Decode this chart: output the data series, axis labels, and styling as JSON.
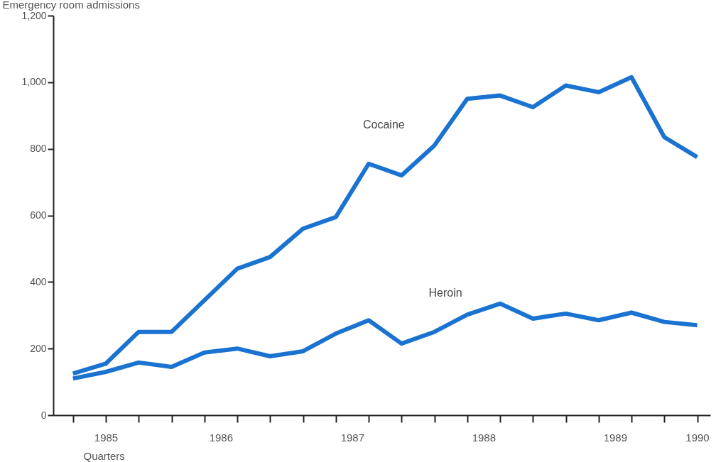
{
  "chart_data": {
    "type": "line",
    "ylabel": "Emergency room admissions",
    "xlabel": "Quarters",
    "x": [
      1985.25,
      1985.5,
      1985.75,
      1986,
      1986.25,
      1986.5,
      1986.75,
      1987,
      1987.25,
      1987.5,
      1987.75,
      1988,
      1988.25,
      1988.5,
      1988.75,
      1989,
      1989.25,
      1989.5,
      1989.75,
      1990
    ],
    "series": [
      {
        "name": "Cocaine",
        "color": "#1a73d0",
        "values": [
          125,
          155,
          250,
          250,
          345,
          440,
          475,
          560,
          595,
          755,
          720,
          810,
          950,
          960,
          925,
          990,
          970,
          1015,
          835,
          775
        ]
      },
      {
        "name": "Heroin",
        "color": "#1a73d0",
        "values": [
          110,
          130,
          158,
          145,
          188,
          200,
          177,
          192,
          245,
          285,
          215,
          250,
          302,
          335,
          290,
          305,
          285,
          308,
          280,
          270
        ]
      }
    ],
    "xlim": [
      1985.1,
      1990.1
    ],
    "xticks": [
      {
        "value": 1985.25,
        "label": null
      },
      {
        "value": 1985.5,
        "label": "1985"
      },
      {
        "value": 1985.75,
        "label": null
      },
      {
        "value": 1986,
        "label": null
      },
      {
        "value": 1986.25,
        "label": null
      },
      {
        "value": 1986.375,
        "label": "1986"
      },
      {
        "value": 1986.5,
        "label": null
      },
      {
        "value": 1986.75,
        "label": null
      },
      {
        "value": 1987,
        "label": null
      },
      {
        "value": 1987.25,
        "label": null
      },
      {
        "value": 1987.375,
        "label": "1987"
      },
      {
        "value": 1987.5,
        "label": null
      },
      {
        "value": 1987.75,
        "label": null
      },
      {
        "value": 1988,
        "label": null
      },
      {
        "value": 1988.25,
        "label": null
      },
      {
        "value": 1988.375,
        "label": "1988"
      },
      {
        "value": 1988.5,
        "label": null
      },
      {
        "value": 1988.75,
        "label": null
      },
      {
        "value": 1989,
        "label": null
      },
      {
        "value": 1989.25,
        "label": null
      },
      {
        "value": 1989.375,
        "label": "1989"
      },
      {
        "value": 1989.5,
        "label": null
      },
      {
        "value": 1989.75,
        "label": null
      },
      {
        "value": 1990,
        "label": "1990"
      }
    ],
    "ylim": [
      0,
      1200
    ],
    "yticks": [
      0,
      200,
      400,
      600,
      800,
      {
        "value": 1000,
        "label": "1,000"
      },
      {
        "value": 1200,
        "label": "1,200"
      }
    ],
    "grid": false,
    "legend": false,
    "marker": "none",
    "line_style": "solid"
  }
}
